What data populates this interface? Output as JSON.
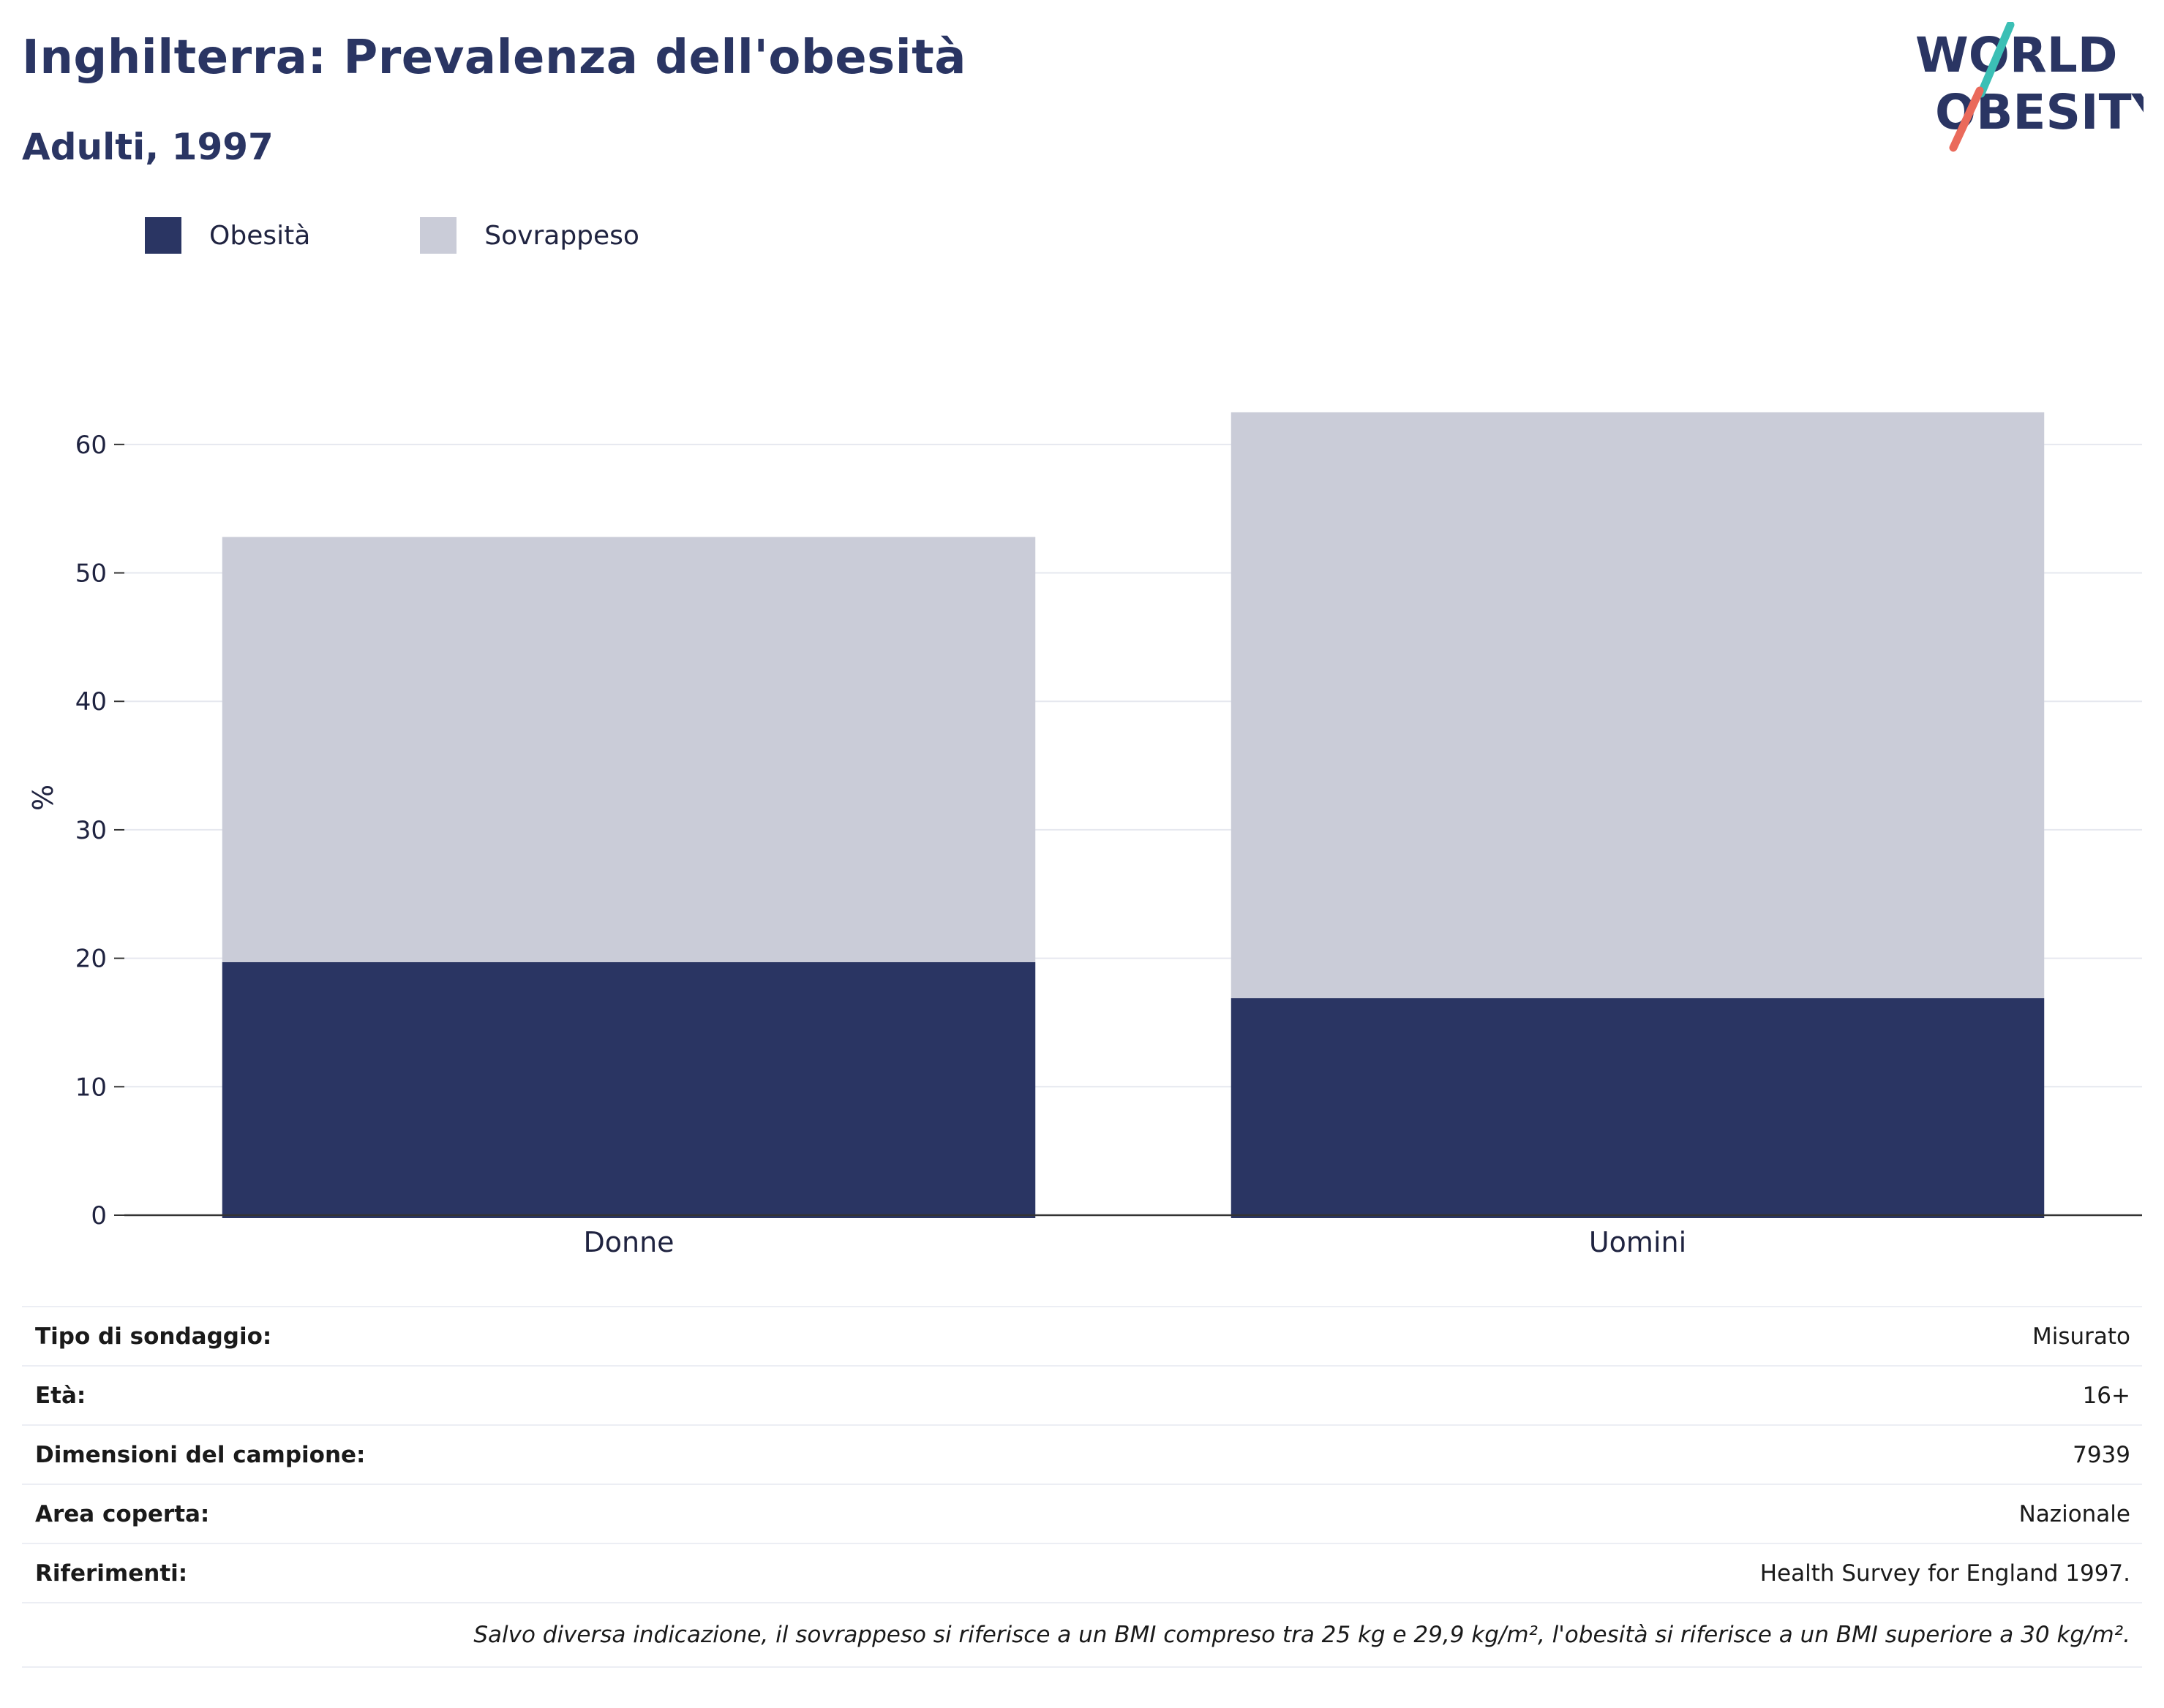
{
  "header": {
    "title": "Inghilterra: Prevalenza dell'obesità",
    "subtitle": "Adulti, 1997"
  },
  "logo": {
    "line1": "WORLD",
    "line2": "OBESITY",
    "colors": {
      "text": "#2a3563",
      "teal": "#3bbfb5",
      "coral": "#ea6a5b"
    }
  },
  "legend": [
    {
      "label": "Obesità",
      "color": "#2a3563"
    },
    {
      "label": "Sovrappeso",
      "color": "#caccd8"
    }
  ],
  "chart_data": {
    "type": "bar",
    "stacked": true,
    "categories": [
      "Donne",
      "Uomini"
    ],
    "series": [
      {
        "name": "Obesità",
        "values": [
          19.7,
          16.9
        ],
        "color": "#2a3563"
      },
      {
        "name": "Sovrappeso",
        "values": [
          33.1,
          45.6
        ],
        "color": "#caccd8"
      }
    ],
    "ylabel": "%",
    "ylim": [
      0,
      65
    ],
    "yticks": [
      0,
      10,
      20,
      30,
      40,
      50,
      60
    ],
    "grid": true,
    "legend_position": "top-left"
  },
  "details": [
    {
      "key": "Tipo di sondaggio:",
      "value": "Misurato"
    },
    {
      "key": "Età:",
      "value": "16+"
    },
    {
      "key": "Dimensioni del campione:",
      "value": "7939"
    },
    {
      "key": "Area coperta:",
      "value": "Nazionale"
    },
    {
      "key": "Riferimenti:",
      "value": "Health Survey for England 1997."
    }
  ],
  "note": "Salvo diversa indicazione, il sovrappeso si riferisce a un BMI compreso tra 25 kg e 29,9 kg/m², l'obesità si riferisce a un BMI superiore a 30 kg/m²."
}
